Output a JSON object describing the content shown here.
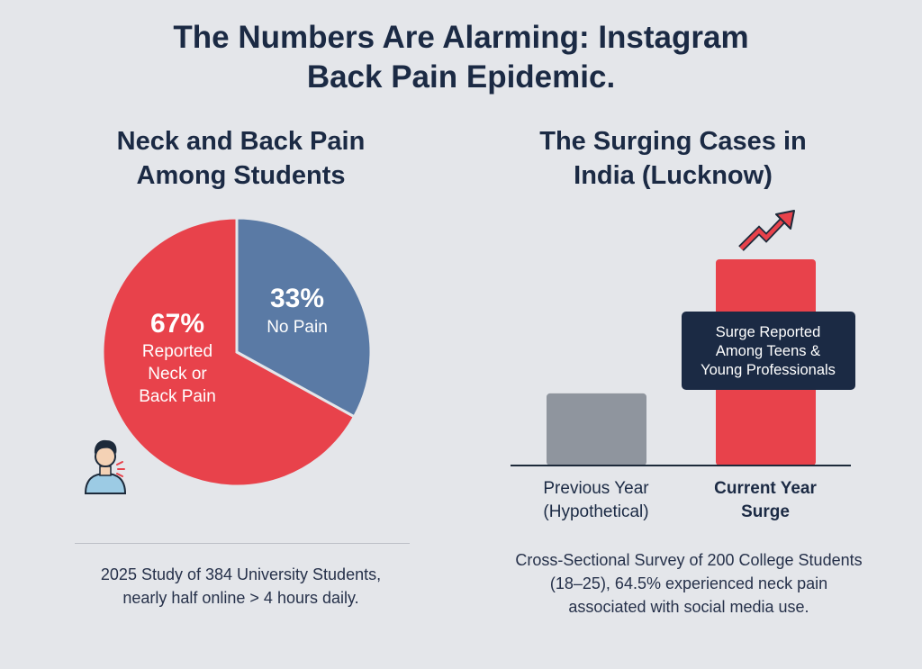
{
  "title_line1": "The Numbers Are Alarming: Instagram",
  "title_line2": "Back Pain Epidemic.",
  "chart_data": [
    {
      "type": "pie",
      "title_line1": "Neck and Back Pain",
      "title_line2": "Among Students",
      "slices": [
        {
          "value": 67,
          "percent_label": "67%",
          "label_lines": [
            "Reported",
            "Neck or",
            "Back Pain"
          ],
          "color": "#e8424b"
        },
        {
          "value": 33,
          "percent_label": "33%",
          "label_lines": [
            "No Pain"
          ],
          "color": "#5a7aa5"
        }
      ],
      "caption_lines": [
        "2025 Study of 384 University Students,",
        "nearly half online > 4 hours daily."
      ],
      "icon": "person-neck-pain-icon"
    },
    {
      "type": "bar",
      "title_line1": "The Surging Cases in",
      "title_line2": "India (Lucknow)",
      "categories": [
        {
          "label_lines": [
            "Previous Year",
            "(Hypothetical)"
          ]
        },
        {
          "label_lines": [
            "Current Year",
            "Surge"
          ]
        }
      ],
      "values": [
        0.35,
        1.0
      ],
      "colors": [
        "#8f959e",
        "#e8424b"
      ],
      "annotation_lines": [
        "Surge Reported",
        "Among Teens &",
        "Young Professionals"
      ],
      "caption_lines": [
        "Cross-Sectional Survey of 200 College Students",
        "(18–25), 64.5% experienced neck pain",
        "associated with social media use."
      ],
      "icon": "trend-up-arrow-icon"
    }
  ]
}
